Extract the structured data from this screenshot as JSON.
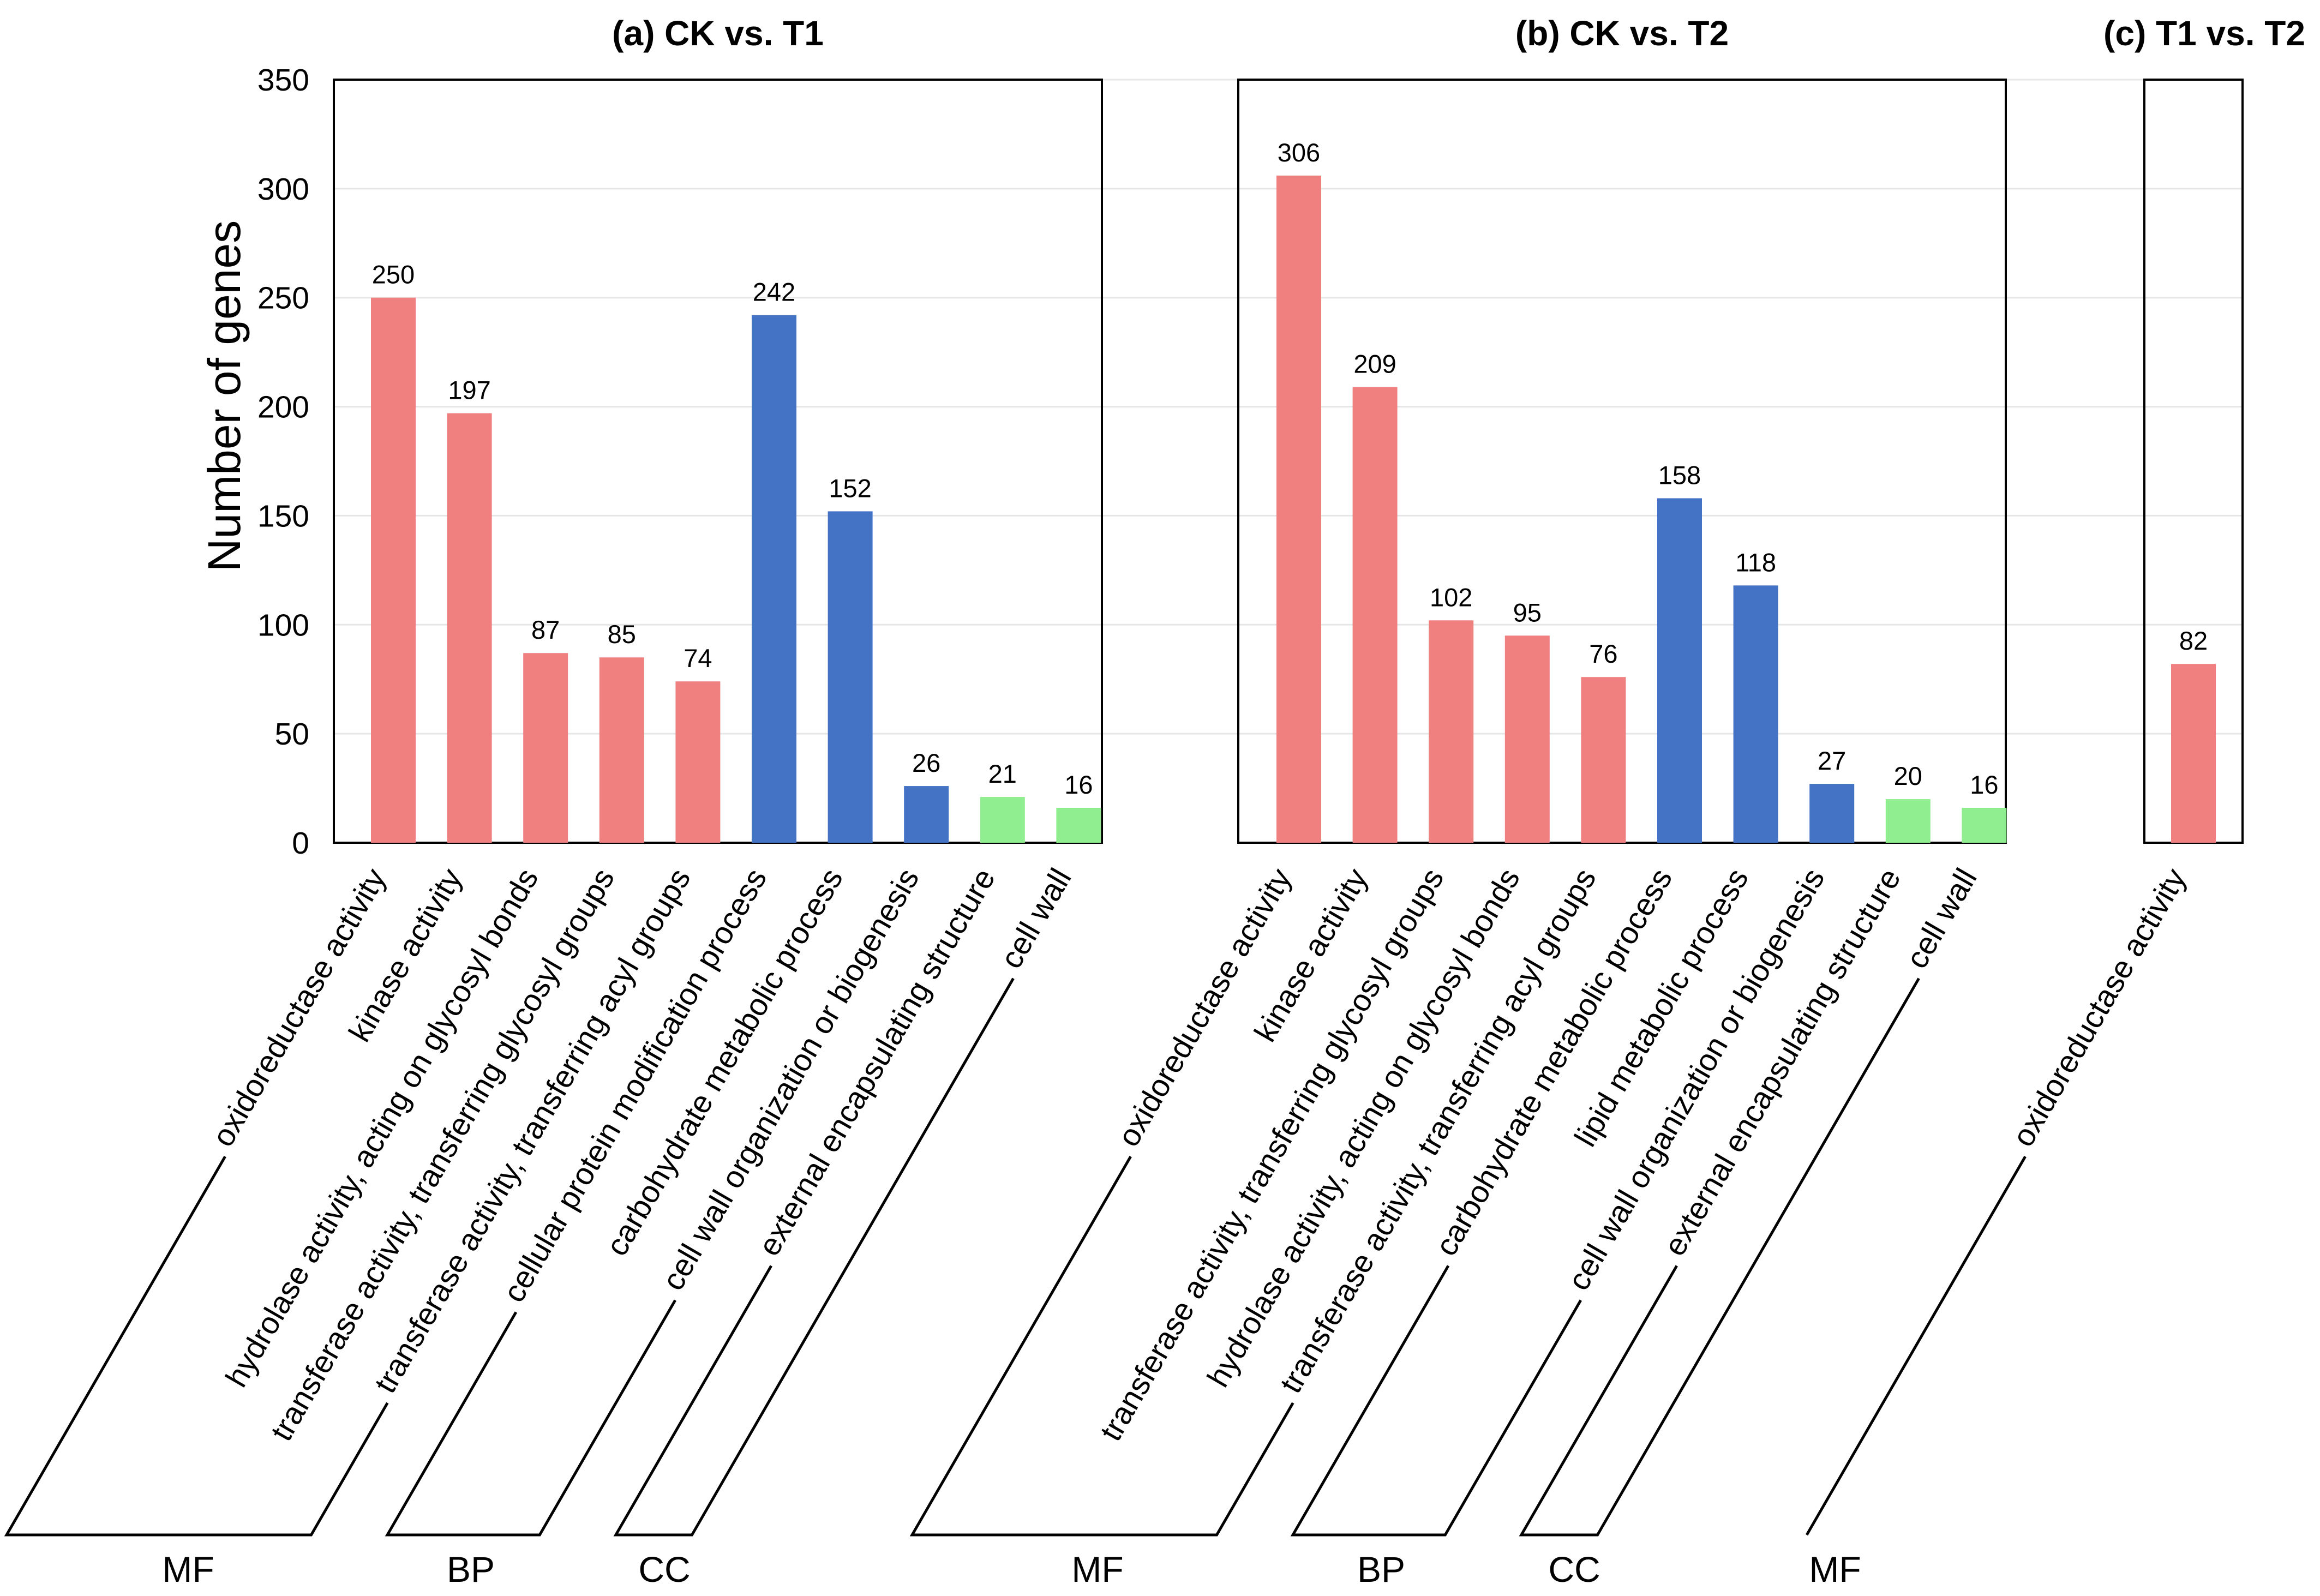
{
  "colors": {
    "MF": "#f08080",
    "BP": "#4472c4",
    "CC": "#90ee90"
  },
  "y_axis": {
    "title": "Number of genes",
    "ticks": [
      "0",
      "50",
      "100",
      "150",
      "200",
      "250",
      "300",
      "350"
    ]
  },
  "chart_data": [
    {
      "type": "bar",
      "title": "(a) CK vs. T1",
      "xlabel": "",
      "ylabel": "Number of genes",
      "ylim": [
        0,
        350
      ],
      "grid": "horizontal",
      "categories": [
        "oxidoreductase activity",
        "kinase activity",
        "hydrolase activity, acting on glycosyl bonds",
        "transferase activity, transferring glycosyl groups",
        "transferase activity, transferring acyl groups",
        "cellular protein modification process",
        "carbohydrate metabolic process",
        "cell wall organization or biogenesis",
        "external encapsulating structure",
        "cell wall"
      ],
      "values": [
        250,
        197,
        87,
        85,
        74,
        242,
        152,
        26,
        21,
        16
      ],
      "value_labels": [
        "250",
        "197",
        "87",
        "85",
        "74",
        "242",
        "152",
        "26",
        "21",
        "16"
      ],
      "category_groups": [
        "MF",
        "MF",
        "MF",
        "MF",
        "MF",
        "BP",
        "BP",
        "BP",
        "CC",
        "CC"
      ],
      "groups": [
        {
          "name": "MF",
          "first": 0,
          "last": 4
        },
        {
          "name": "BP",
          "first": 5,
          "last": 7
        },
        {
          "name": "CC",
          "first": 8,
          "last": 9
        }
      ]
    },
    {
      "type": "bar",
      "title": "(b) CK vs. T2",
      "xlabel": "",
      "ylabel": "Number of genes",
      "ylim": [
        0,
        350
      ],
      "grid": "horizontal",
      "categories": [
        "oxidoreductase activity",
        "kinase activity",
        "transferase activity, transferring glycosyl groups",
        "hydrolase activity, acting on glycosyl bonds",
        "transferase activity, transferring acyl groups",
        "carbohydrate metabolic process",
        "lipid metabolic process",
        "cell wall organization or biogenesis",
        "external encapsulating structure",
        "cell wall"
      ],
      "values": [
        306,
        209,
        102,
        95,
        76,
        158,
        118,
        27,
        20,
        16
      ],
      "value_labels": [
        "306",
        "209",
        "102",
        "95",
        "76",
        "158",
        "118",
        "27",
        "20",
        "16"
      ],
      "category_groups": [
        "MF",
        "MF",
        "MF",
        "MF",
        "MF",
        "BP",
        "BP",
        "BP",
        "CC",
        "CC"
      ],
      "groups": [
        {
          "name": "MF",
          "first": 0,
          "last": 4
        },
        {
          "name": "BP",
          "first": 5,
          "last": 7
        },
        {
          "name": "CC",
          "first": 8,
          "last": 9
        }
      ]
    },
    {
      "type": "bar",
      "title": "(c) T1 vs. T2",
      "xlabel": "",
      "ylabel": "Number of genes",
      "ylim": [
        0,
        350
      ],
      "grid": "horizontal",
      "categories": [
        "oxidoreductase activity"
      ],
      "values": [
        82
      ],
      "value_labels": [
        "82"
      ],
      "category_groups": [
        "MF"
      ],
      "groups": [
        {
          "name": "MF",
          "first": 0,
          "last": 0
        }
      ]
    }
  ]
}
